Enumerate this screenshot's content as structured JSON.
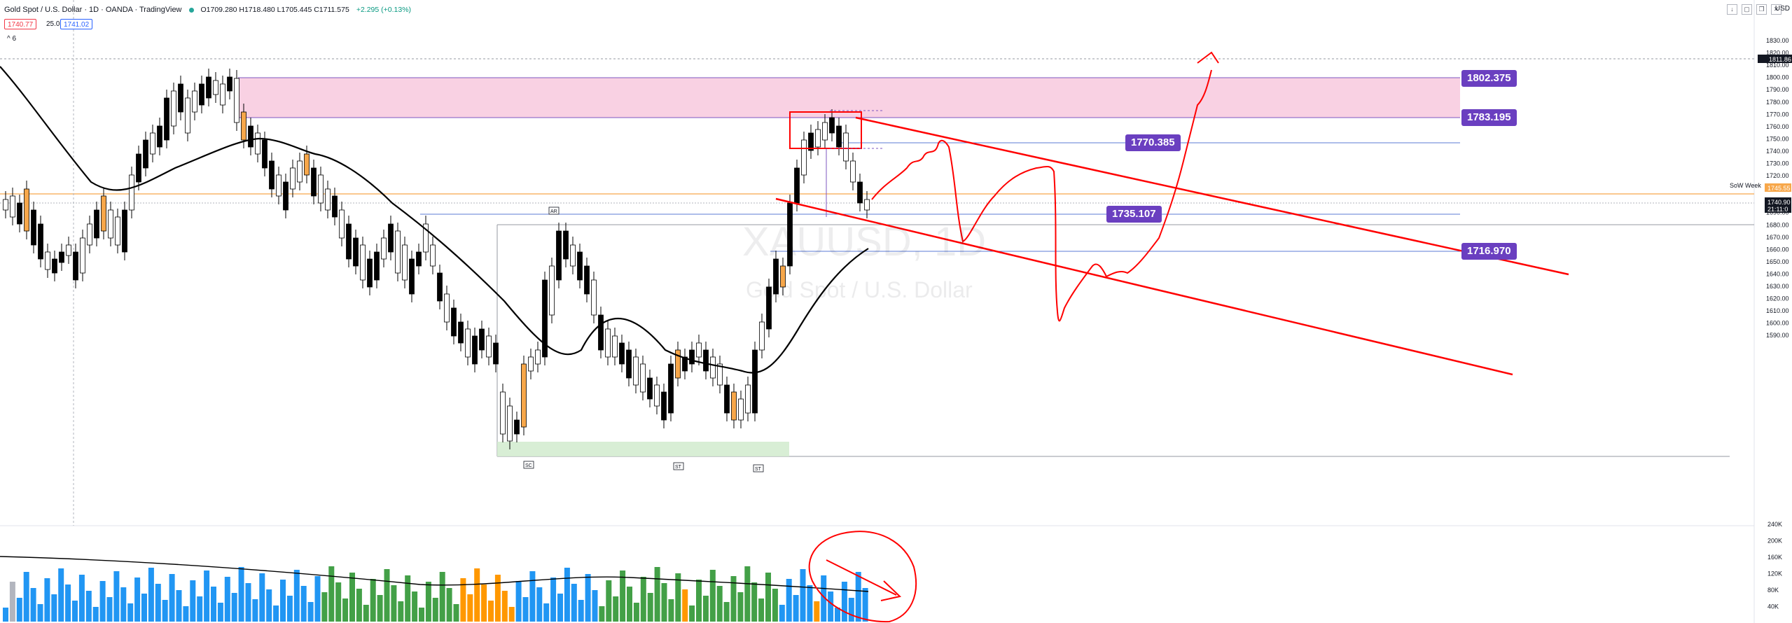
{
  "header": {
    "symbol": "Gold Spot / U.S. Dollar · 1D · OANDA · TradingView",
    "ohlc": "O1709.280 H1718.480 L1705.445 C1711.575",
    "change": "+2.295 (+0.13%)",
    "sell_price": "1740.77",
    "quantity": "25.0",
    "buy_price": "1741.02",
    "toggle": "^ 6",
    "currency": "USD"
  },
  "watermark": {
    "symbol": "XAUUSD, 1D",
    "name": "Gold Spot / U.S. Dollar"
  },
  "price_axis": {
    "ticks": [
      "1830.00",
      "1820.00",
      "1810.00",
      "1800.00",
      "1790.00",
      "1780.00",
      "1770.00",
      "1760.00",
      "1750.00",
      "1740.00",
      "1730.00",
      "1720.00",
      "1710.00",
      "1700.00",
      "1690.00",
      "1680.00",
      "1670.00",
      "1660.00",
      "1650.00",
      "1640.00",
      "1630.00",
      "1620.00",
      "1610.00",
      "1600.00",
      "1590.00"
    ],
    "last_price": "1740.90",
    "countdown": "21:11:0",
    "high_marker": "1811.86",
    "week_label": "SoW Week",
    "week_price": "1745.55"
  },
  "volume_axis": {
    "ticks": [
      "240K",
      "200K",
      "160K",
      "120K",
      "80K",
      "40K"
    ]
  },
  "levels": {
    "zone_top": "1802.375",
    "zone_bottom": "1783.195",
    "level_1770": "1770.385",
    "level_1735": "1735.107",
    "level_1716": "1716.970"
  },
  "annotations": {
    "ar": "AR",
    "sc": "SC",
    "st1": "ST",
    "st2": "ST"
  },
  "colors": {
    "up": "#ffffff",
    "down": "#000000",
    "accent_orange": "#f7a74a",
    "label_purple": "#6a3fc0",
    "drawing_red": "#ff0000",
    "zone_pink": "#f8c9de",
    "zone_green": "#d4ecd0"
  }
}
